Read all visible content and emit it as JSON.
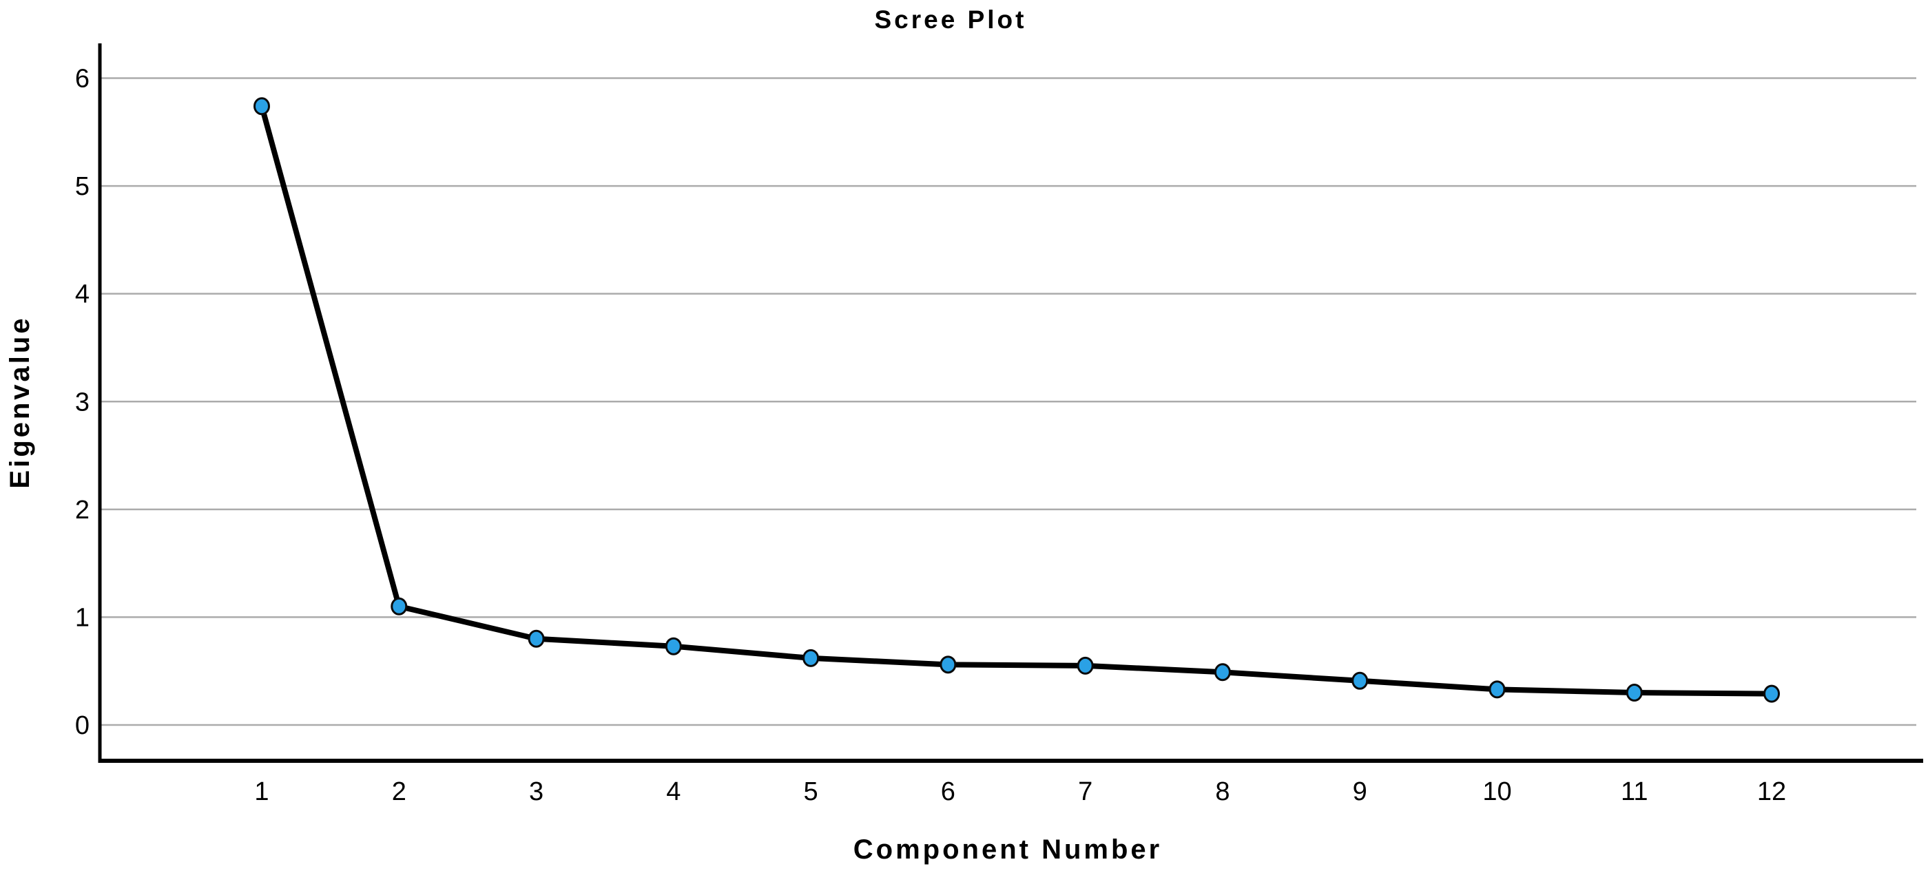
{
  "figure": {
    "title": "Scree Plot",
    "background": "#ffffff"
  },
  "chart_data": {
    "type": "line",
    "title": "Scree Plot",
    "xlabel": "Component Number",
    "ylabel": "Eigenvalue",
    "x": [
      1,
      2,
      3,
      4,
      5,
      6,
      7,
      8,
      9,
      10,
      11,
      12
    ],
    "x_tick_labels": [
      "1",
      "2",
      "3",
      "4",
      "5",
      "6",
      "7",
      "8",
      "9",
      "10",
      "11",
      "12"
    ],
    "series": [
      {
        "name": "Eigenvalue",
        "values": [
          5.74,
          1.1,
          0.8,
          0.73,
          0.62,
          0.56,
          0.55,
          0.49,
          0.41,
          0.33,
          0.3,
          0.29
        ]
      }
    ],
    "y_ticks": [
      0,
      1,
      2,
      3,
      4,
      5,
      6
    ],
    "y_tick_labels": [
      "0",
      "1",
      "2",
      "3",
      "4",
      "5",
      "6"
    ],
    "ylim": [
      0,
      6.35
    ],
    "grid": "horizontal",
    "legend": "none",
    "styles": {
      "line_color": "#000000",
      "marker_fill": "#2AA1E6",
      "marker_stroke": "#0a0a0a",
      "grid_color": "#ABABAB",
      "axis_color": "#000000",
      "text_color": "#000000"
    }
  }
}
